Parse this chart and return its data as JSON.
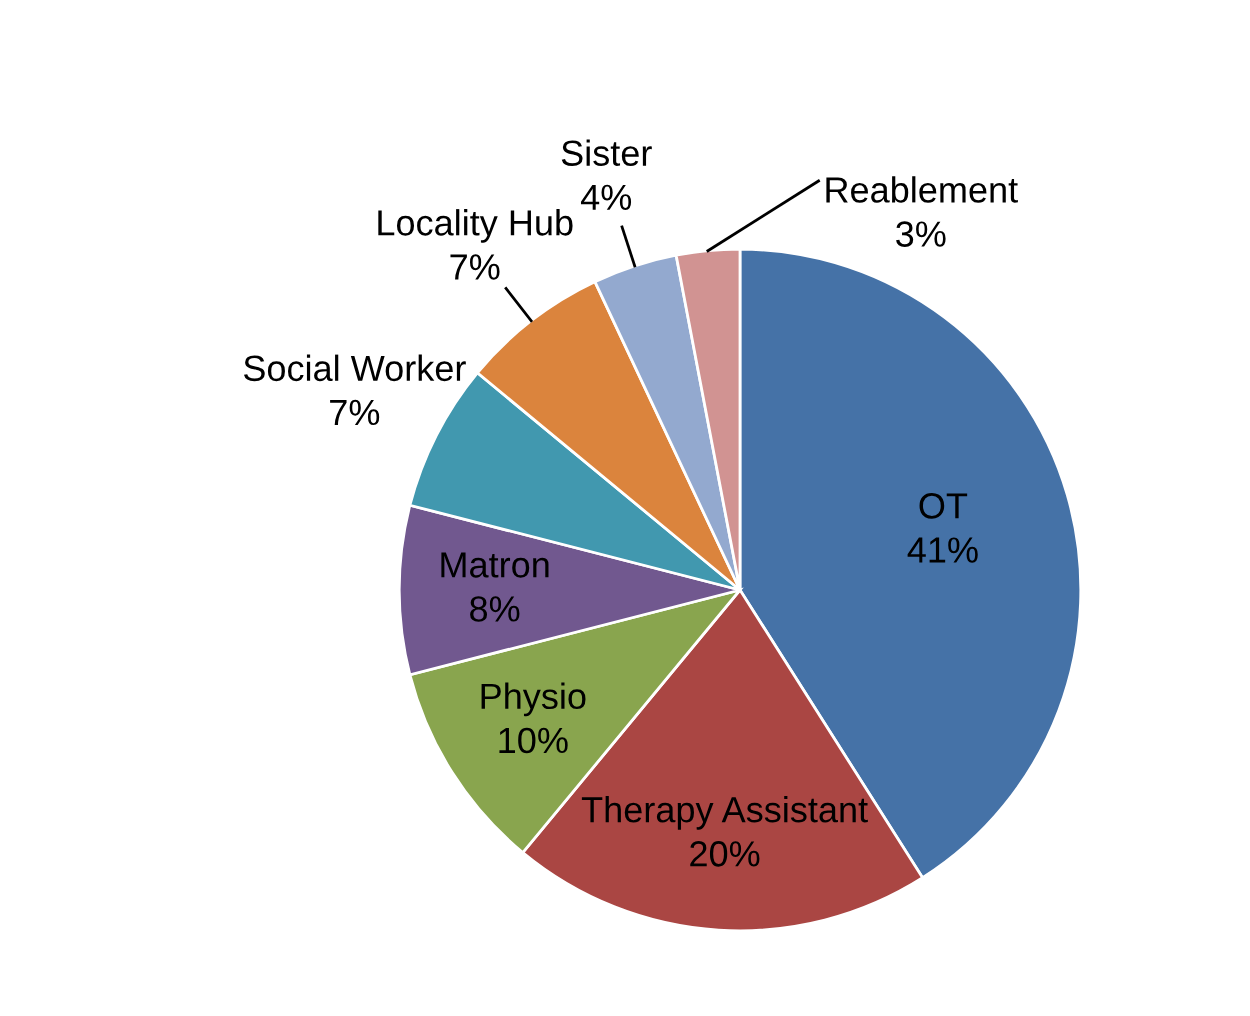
{
  "chart_data": {
    "type": "pie",
    "categories": [
      "OT",
      "Therapy Assistant",
      "Physio",
      "Matron",
      "Social Worker",
      "Locality Hub",
      "Sister",
      "Reablement"
    ],
    "values": [
      41,
      20,
      10,
      8,
      7,
      7,
      4,
      3
    ],
    "value_labels": [
      "41%",
      "20%",
      "10%",
      "8%",
      "7%",
      "7%",
      "4%",
      "3%"
    ],
    "colors": [
      "#4572a7",
      "#aa4643",
      "#89a54e",
      "#71588f",
      "#4198af",
      "#db843d",
      "#93a9cf",
      "#d19392"
    ],
    "legend": false
  }
}
